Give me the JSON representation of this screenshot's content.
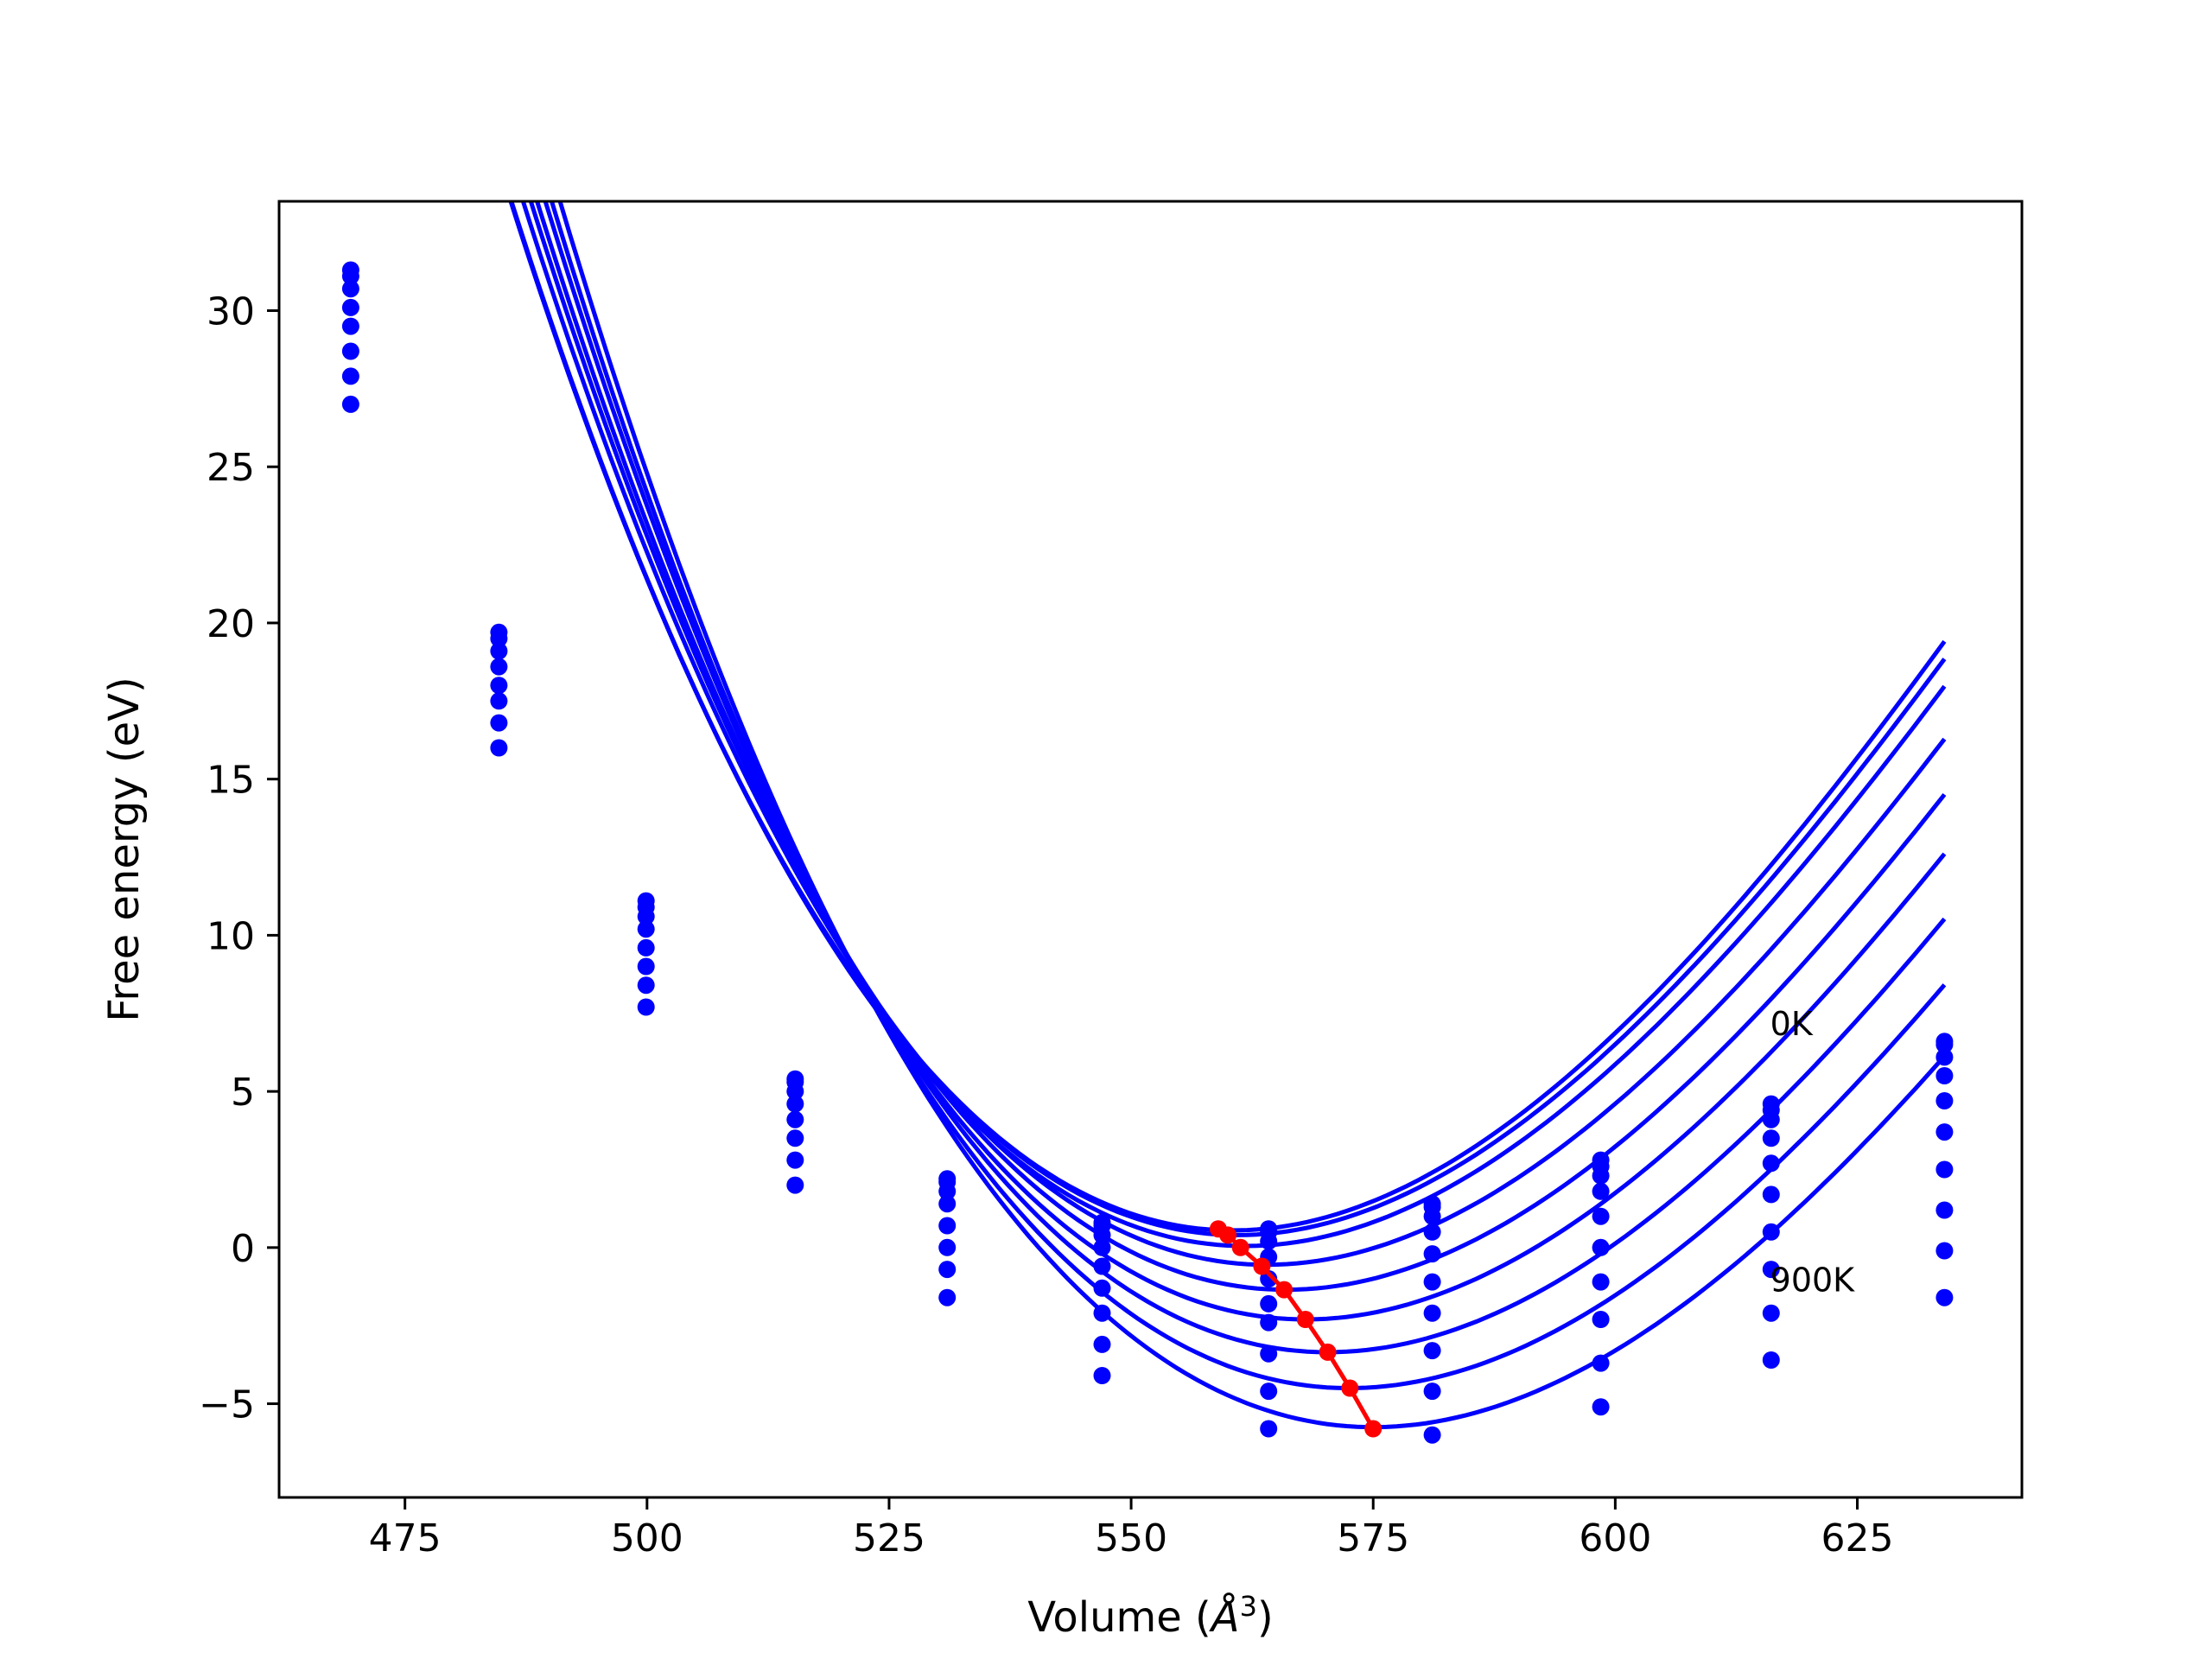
{
  "chart_data": {
    "type": "line",
    "title": "",
    "xlabel": "Volume ($\\AA^3$)",
    "xlabel_parts": {
      "prefix": "Volume (",
      "symbol": "Å",
      "sup": "3",
      "suffix": ")"
    },
    "ylabel": "Free energy (eV)",
    "xlim": [
      462,
      642
    ],
    "ylim": [
      -8.0,
      33.5
    ],
    "xticks": [
      475,
      500,
      525,
      550,
      575,
      600,
      625
    ],
    "xtick_labels": [
      "475",
      "500",
      "525",
      "550",
      "575",
      "600",
      "625"
    ],
    "yticks": [
      -5,
      0,
      5,
      10,
      15,
      20,
      25,
      30
    ],
    "ytick_labels": [
      "−5",
      "0",
      "5",
      "10",
      "15",
      "20",
      "25",
      "30"
    ],
    "grid": false,
    "legend": "none",
    "annotations": [
      {
        "text": "0K",
        "x": 616,
        "y": 6.8
      },
      {
        "text": "900K",
        "x": 616,
        "y": -1.4
      }
    ],
    "volumes": [
      469.4,
      484.7,
      499.9,
      515.3,
      531.0,
      547.0,
      564.2,
      581.1,
      598.5,
      616.1,
      634.0
    ],
    "series": [
      {
        "color": "#0000ff",
        "values": [
          31.3,
          19.7,
          11.1,
          5.4,
          2.2,
          0.8,
          0.6,
          1.4,
          2.8,
          4.6,
          6.6
        ]
      },
      {
        "color": "#0000ff",
        "values": [
          31.1,
          19.5,
          10.9,
          5.3,
          2.1,
          0.7,
          0.5,
          1.3,
          2.6,
          4.4,
          6.5
        ]
      },
      {
        "color": "#0000ff",
        "values": [
          30.7,
          19.1,
          10.6,
          5.0,
          1.8,
          0.4,
          0.2,
          1.0,
          2.3,
          4.1,
          6.1
        ]
      },
      {
        "color": "#0000ff",
        "values": [
          30.1,
          18.6,
          10.2,
          4.6,
          1.4,
          0.0,
          -0.3,
          0.5,
          1.8,
          3.5,
          5.5
        ]
      },
      {
        "color": "#0000ff",
        "values": [
          29.5,
          18.0,
          9.6,
          4.1,
          0.7,
          -0.6,
          -1.0,
          -0.2,
          1.0,
          2.7,
          4.7
        ]
      },
      {
        "color": "#0000ff",
        "values": [
          28.7,
          17.5,
          9.0,
          3.5,
          0.0,
          -1.3,
          -1.8,
          -1.1,
          0.0,
          1.7,
          3.7
        ]
      },
      {
        "color": "#0000ff",
        "values": [
          27.9,
          16.8,
          8.4,
          2.8,
          -0.7,
          -2.1,
          -2.4,
          -2.1,
          -1.1,
          0.5,
          2.5
        ]
      },
      {
        "color": "#0000ff",
        "values": [
          27.0,
          16.0,
          7.7,
          2.0,
          -1.6,
          -3.1,
          -3.4,
          -3.3,
          -2.3,
          -0.7,
          1.2
        ]
      },
      {
        "color": "#0000ff",
        "values": [
          null,
          null,
          null,
          null,
          null,
          -4.1,
          -4.6,
          -4.6,
          -3.7,
          -2.1,
          -0.1
        ]
      },
      {
        "color": "#0000ff",
        "values": [
          null,
          null,
          null,
          null,
          null,
          null,
          -5.8,
          -6.0,
          -5.1,
          -3.6,
          -1.6
        ]
      }
    ],
    "fit_curves": [
      {
        "a": 0.0047,
        "v0": 560.5,
        "emin": 0.55
      },
      {
        "a": 0.00465,
        "v0": 561.0,
        "emin": 0.4
      },
      {
        "a": 0.0046,
        "v0": 561.8,
        "emin": 0.05
      },
      {
        "a": 0.00455,
        "v0": 564.0,
        "emin": -0.55
      },
      {
        "a": 0.0045,
        "v0": 566.0,
        "emin": -1.35
      },
      {
        "a": 0.00445,
        "v0": 568.0,
        "emin": -2.3
      },
      {
        "a": 0.0044,
        "v0": 570.3,
        "emin": -3.35
      },
      {
        "a": 0.00435,
        "v0": 572.5,
        "emin": -4.5
      },
      {
        "a": 0.0043,
        "v0": 575.0,
        "emin": -5.75
      }
    ],
    "minimum_path": {
      "color": "#ff0000",
      "x": [
        559.0,
        560.0,
        561.3,
        563.5,
        565.8,
        568.0,
        570.3,
        572.6,
        575.0
      ],
      "y": [
        0.6,
        0.4,
        0.0,
        -0.6,
        -1.35,
        -2.3,
        -3.35,
        -4.5,
        -5.8
      ]
    }
  }
}
